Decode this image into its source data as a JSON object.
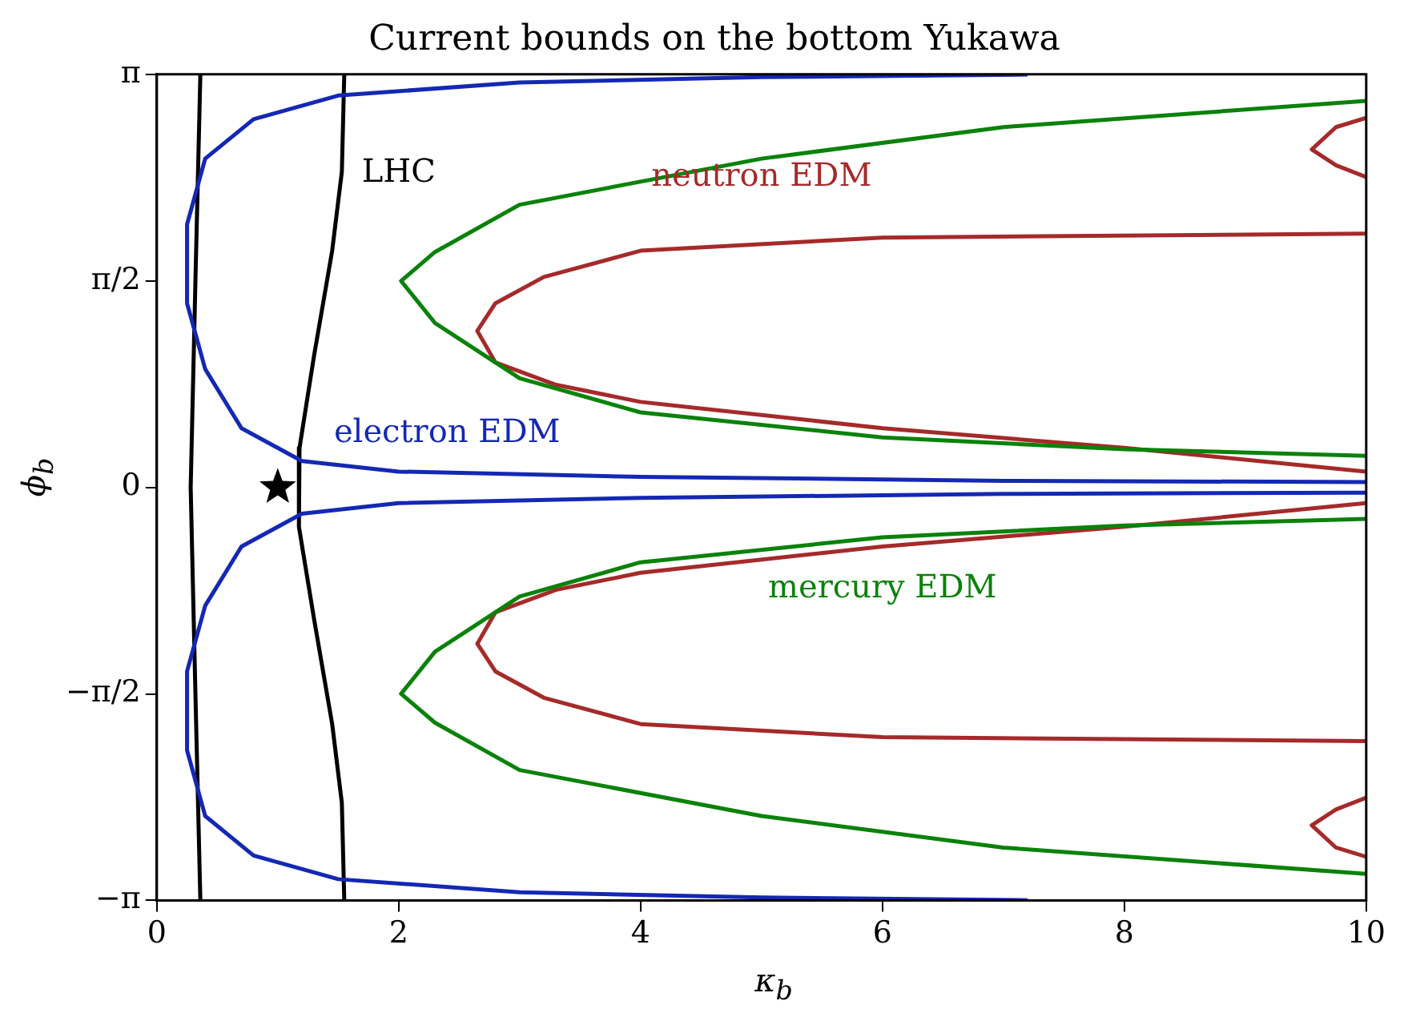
{
  "chart_data": {
    "type": "line",
    "title": "Current bounds on the bottom Yukawa",
    "xlabel": "κ$_{b}$",
    "ylabel": "ϕ$_{b}$",
    "xlim": [
      0,
      10
    ],
    "xticks": [
      0,
      2,
      4,
      6,
      8,
      10
    ],
    "ylim": [
      -3.14159,
      3.14159
    ],
    "yticks": [
      {
        "value": -3.14159,
        "label": "−π"
      },
      {
        "value": -1.5708,
        "label": "−π/2"
      },
      0,
      {
        "value": 1.5708,
        "label": "π/2"
      },
      {
        "value": 3.14159,
        "label": "π"
      }
    ],
    "grid": false,
    "legend": false,
    "line_style": "solid",
    "marker": "none",
    "series": [
      {
        "color": "#0a820a",
        "x": [
          10,
          7,
          5,
          3,
          2.3,
          2.02,
          2.3,
          3,
          4,
          6,
          8,
          10
        ],
        "values": [
          2.94,
          2.74,
          2.5,
          2.15,
          1.79,
          1.57,
          1.25,
          0.83,
          0.57,
          0.38,
          0.29,
          0.24
        ]
      },
      {
        "color": "#0a820a",
        "x": [
          10,
          7,
          5,
          3,
          2.3,
          2.02,
          2.3,
          3,
          4,
          6,
          8,
          10
        ],
        "values": [
          -2.94,
          -2.74,
          -2.5,
          -2.15,
          -1.79,
          -1.57,
          -1.25,
          -0.83,
          -0.57,
          -0.38,
          -0.29,
          -0.24
        ]
      },
      {
        "color": "#a52a2a",
        "x": [
          10,
          6,
          4,
          3.2,
          2.8,
          2.65,
          2.8,
          3.3,
          4,
          6,
          8,
          10
        ],
        "values": [
          1.93,
          1.9,
          1.8,
          1.6,
          1.4,
          1.19,
          0.95,
          0.78,
          0.65,
          0.45,
          0.3,
          0.12
        ]
      },
      {
        "color": "#a52a2a",
        "x": [
          10,
          6,
          4,
          3.2,
          2.8,
          2.65,
          2.8,
          3.3,
          4,
          6,
          8,
          10
        ],
        "values": [
          -1.93,
          -1.9,
          -1.8,
          -1.6,
          -1.4,
          -1.19,
          -0.95,
          -0.78,
          -0.65,
          -0.45,
          -0.3,
          -0.12
        ]
      },
      {
        "color": "#a52a2a",
        "x": [
          10,
          9.75,
          9.55,
          9.75,
          10
        ],
        "values": [
          2.81,
          2.74,
          2.57,
          2.45,
          2.36
        ]
      },
      {
        "color": "#a52a2a",
        "x": [
          10,
          9.75,
          9.55,
          9.75,
          10
        ],
        "values": [
          -2.81,
          -2.74,
          -2.57,
          -2.45,
          -2.36
        ]
      },
      {
        "color": "#1428b4",
        "x": [
          7.2,
          5,
          3,
          1.5,
          0.8,
          0.4,
          0.25,
          0.25,
          0.4,
          0.7,
          1.2,
          2,
          4,
          7,
          10
        ],
        "values": [
          3.14,
          3.12,
          3.08,
          2.98,
          2.8,
          2.5,
          2.0,
          1.4,
          0.9,
          0.45,
          0.2,
          0.12,
          0.08,
          0.05,
          0.04
        ]
      },
      {
        "color": "#1428b4",
        "x": [
          7.2,
          5,
          3,
          1.5,
          0.8,
          0.4,
          0.25,
          0.25,
          0.4,
          0.7,
          1.2,
          2,
          4,
          7,
          10
        ],
        "values": [
          -3.14,
          -3.12,
          -3.08,
          -2.98,
          -2.8,
          -2.5,
          -2.0,
          -1.4,
          -0.9,
          -0.45,
          -0.2,
          -0.12,
          -0.08,
          -0.05,
          -0.04
        ]
      },
      {
        "color": "#000000",
        "x": [
          0.36,
          0.32,
          0.28,
          0.32,
          0.36
        ],
        "values": [
          3.14,
          1.6,
          0,
          -1.6,
          -3.14
        ]
      },
      {
        "color": "#000000",
        "x": [
          1.55,
          1.53,
          1.45,
          1.3,
          1.18,
          1.17,
          1.18,
          1.3,
          1.45,
          1.53,
          1.55
        ],
        "values": [
          3.14,
          2.4,
          1.8,
          1.0,
          0.3,
          0,
          -0.3,
          -1.0,
          -1.8,
          -2.4,
          -3.14
        ]
      },
      {
        "type": "scatter",
        "marker": "star",
        "color": "#000000",
        "x": [
          1
        ],
        "values": [
          0
        ]
      }
    ],
    "annotations": [
      "LHC",
      "neutron EDM",
      "electron EDM",
      "mercury EDM"
    ]
  }
}
